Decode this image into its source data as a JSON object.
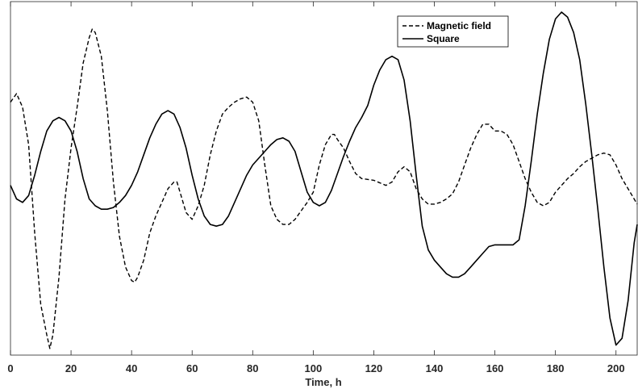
{
  "chart_data": {
    "type": "line",
    "title": "",
    "xlabel": "Time, h",
    "ylabel": "",
    "xlim": [
      0,
      207
    ],
    "ylim": [
      -1.0,
      1.0
    ],
    "x_ticks": [
      0,
      20,
      40,
      60,
      80,
      100,
      120,
      140,
      160,
      180,
      200
    ],
    "y_ticks": [],
    "grid": false,
    "legend_position": "top-right",
    "series": [
      {
        "name": "Magnetic field",
        "style": "dashed",
        "color": "#000000",
        "points": [
          [
            0,
            0.47
          ],
          [
            2,
            0.52
          ],
          [
            4,
            0.44
          ],
          [
            6,
            0.22
          ],
          [
            8,
            -0.3
          ],
          [
            10,
            -0.72
          ],
          [
            12,
            -0.9
          ],
          [
            13,
            -0.98
          ],
          [
            14,
            -0.9
          ],
          [
            16,
            -0.56
          ],
          [
            18,
            -0.1
          ],
          [
            20,
            0.2
          ],
          [
            22,
            0.44
          ],
          [
            24,
            0.7
          ],
          [
            26,
            0.85
          ],
          [
            27,
            0.9
          ],
          [
            28,
            0.88
          ],
          [
            30,
            0.74
          ],
          [
            32,
            0.42
          ],
          [
            34,
            0.0
          ],
          [
            36,
            -0.32
          ],
          [
            38,
            -0.5
          ],
          [
            40,
            -0.58
          ],
          [
            41,
            -0.59
          ],
          [
            42,
            -0.56
          ],
          [
            44,
            -0.46
          ],
          [
            46,
            -0.3
          ],
          [
            48,
            -0.2
          ],
          [
            50,
            -0.12
          ],
          [
            52,
            -0.04
          ],
          [
            54,
            0.0
          ],
          [
            55,
            0.0
          ],
          [
            56,
            -0.06
          ],
          [
            58,
            -0.18
          ],
          [
            60,
            -0.22
          ],
          [
            62,
            -0.14
          ],
          [
            64,
            -0.02
          ],
          [
            66,
            0.16
          ],
          [
            68,
            0.3
          ],
          [
            70,
            0.4
          ],
          [
            72,
            0.44
          ],
          [
            74,
            0.47
          ],
          [
            76,
            0.49
          ],
          [
            78,
            0.5
          ],
          [
            80,
            0.47
          ],
          [
            82,
            0.36
          ],
          [
            84,
            0.1
          ],
          [
            86,
            -0.14
          ],
          [
            88,
            -0.22
          ],
          [
            90,
            -0.25
          ],
          [
            92,
            -0.25
          ],
          [
            94,
            -0.22
          ],
          [
            96,
            -0.17
          ],
          [
            98,
            -0.12
          ],
          [
            100,
            -0.06
          ],
          [
            102,
            0.1
          ],
          [
            104,
            0.22
          ],
          [
            106,
            0.28
          ],
          [
            107,
            0.28
          ],
          [
            108,
            0.25
          ],
          [
            110,
            0.2
          ],
          [
            112,
            0.12
          ],
          [
            114,
            0.05
          ],
          [
            116,
            0.02
          ],
          [
            120,
            0.01
          ],
          [
            124,
            -0.02
          ],
          [
            126,
            0.0
          ],
          [
            128,
            0.06
          ],
          [
            130,
            0.09
          ],
          [
            132,
            0.06
          ],
          [
            134,
            -0.04
          ],
          [
            136,
            -0.1
          ],
          [
            138,
            -0.13
          ],
          [
            140,
            -0.13
          ],
          [
            142,
            -0.12
          ],
          [
            144,
            -0.1
          ],
          [
            146,
            -0.07
          ],
          [
            148,
            0.0
          ],
          [
            150,
            0.1
          ],
          [
            152,
            0.2
          ],
          [
            154,
            0.28
          ],
          [
            156,
            0.34
          ],
          [
            158,
            0.34
          ],
          [
            160,
            0.3
          ],
          [
            162,
            0.3
          ],
          [
            164,
            0.28
          ],
          [
            166,
            0.22
          ],
          [
            168,
            0.12
          ],
          [
            170,
            0.02
          ],
          [
            172,
            -0.06
          ],
          [
            174,
            -0.12
          ],
          [
            176,
            -0.14
          ],
          [
            178,
            -0.12
          ],
          [
            180,
            -0.06
          ],
          [
            182,
            -0.02
          ],
          [
            184,
            0.02
          ],
          [
            186,
            0.05
          ],
          [
            188,
            0.09
          ],
          [
            190,
            0.12
          ],
          [
            192,
            0.14
          ],
          [
            194,
            0.16
          ],
          [
            196,
            0.17
          ],
          [
            198,
            0.16
          ],
          [
            200,
            0.1
          ],
          [
            202,
            0.02
          ],
          [
            204,
            -0.04
          ],
          [
            206,
            -0.1
          ],
          [
            207,
            -0.13
          ]
        ]
      },
      {
        "name": "Square",
        "style": "solid",
        "color": "#000000",
        "points": [
          [
            0,
            -0.02
          ],
          [
            2,
            -0.1
          ],
          [
            4,
            -0.12
          ],
          [
            6,
            -0.08
          ],
          [
            8,
            0.04
          ],
          [
            10,
            0.18
          ],
          [
            12,
            0.3
          ],
          [
            14,
            0.36
          ],
          [
            16,
            0.38
          ],
          [
            18,
            0.36
          ],
          [
            20,
            0.3
          ],
          [
            22,
            0.18
          ],
          [
            24,
            0.02
          ],
          [
            26,
            -0.1
          ],
          [
            28,
            -0.14
          ],
          [
            30,
            -0.16
          ],
          [
            32,
            -0.16
          ],
          [
            34,
            -0.15
          ],
          [
            36,
            -0.12
          ],
          [
            38,
            -0.08
          ],
          [
            40,
            -0.02
          ],
          [
            42,
            0.06
          ],
          [
            44,
            0.16
          ],
          [
            46,
            0.26
          ],
          [
            48,
            0.34
          ],
          [
            50,
            0.4
          ],
          [
            52,
            0.42
          ],
          [
            54,
            0.4
          ],
          [
            56,
            0.32
          ],
          [
            58,
            0.2
          ],
          [
            60,
            0.04
          ],
          [
            62,
            -0.1
          ],
          [
            64,
            -0.2
          ],
          [
            66,
            -0.25
          ],
          [
            68,
            -0.26
          ],
          [
            70,
            -0.25
          ],
          [
            72,
            -0.2
          ],
          [
            74,
            -0.12
          ],
          [
            76,
            -0.04
          ],
          [
            78,
            0.04
          ],
          [
            80,
            0.1
          ],
          [
            82,
            0.14
          ],
          [
            84,
            0.18
          ],
          [
            86,
            0.22
          ],
          [
            88,
            0.25
          ],
          [
            90,
            0.26
          ],
          [
            92,
            0.24
          ],
          [
            94,
            0.18
          ],
          [
            96,
            0.06
          ],
          [
            98,
            -0.06
          ],
          [
            100,
            -0.12
          ],
          [
            102,
            -0.14
          ],
          [
            104,
            -0.12
          ],
          [
            106,
            -0.05
          ],
          [
            108,
            0.05
          ],
          [
            110,
            0.15
          ],
          [
            112,
            0.24
          ],
          [
            114,
            0.32
          ],
          [
            116,
            0.38
          ],
          [
            118,
            0.45
          ],
          [
            120,
            0.57
          ],
          [
            122,
            0.66
          ],
          [
            124,
            0.72
          ],
          [
            126,
            0.74
          ],
          [
            128,
            0.72
          ],
          [
            130,
            0.6
          ],
          [
            132,
            0.36
          ],
          [
            134,
            0.04
          ],
          [
            136,
            -0.26
          ],
          [
            138,
            -0.4
          ],
          [
            140,
            -0.46
          ],
          [
            142,
            -0.5
          ],
          [
            144,
            -0.54
          ],
          [
            146,
            -0.56
          ],
          [
            148,
            -0.56
          ],
          [
            150,
            -0.54
          ],
          [
            152,
            -0.5
          ],
          [
            154,
            -0.46
          ],
          [
            156,
            -0.42
          ],
          [
            158,
            -0.38
          ],
          [
            160,
            -0.37
          ],
          [
            162,
            -0.37
          ],
          [
            164,
            -0.37
          ],
          [
            166,
            -0.37
          ],
          [
            168,
            -0.34
          ],
          [
            170,
            -0.14
          ],
          [
            172,
            0.12
          ],
          [
            174,
            0.4
          ],
          [
            176,
            0.64
          ],
          [
            178,
            0.84
          ],
          [
            180,
            0.96
          ],
          [
            182,
            1.0
          ],
          [
            184,
            0.97
          ],
          [
            186,
            0.88
          ],
          [
            188,
            0.72
          ],
          [
            190,
            0.46
          ],
          [
            192,
            0.16
          ],
          [
            194,
            -0.16
          ],
          [
            196,
            -0.5
          ],
          [
            198,
            -0.8
          ],
          [
            200,
            -0.96
          ],
          [
            202,
            -0.92
          ],
          [
            204,
            -0.7
          ],
          [
            206,
            -0.36
          ],
          [
            207,
            -0.25
          ]
        ]
      }
    ]
  }
}
